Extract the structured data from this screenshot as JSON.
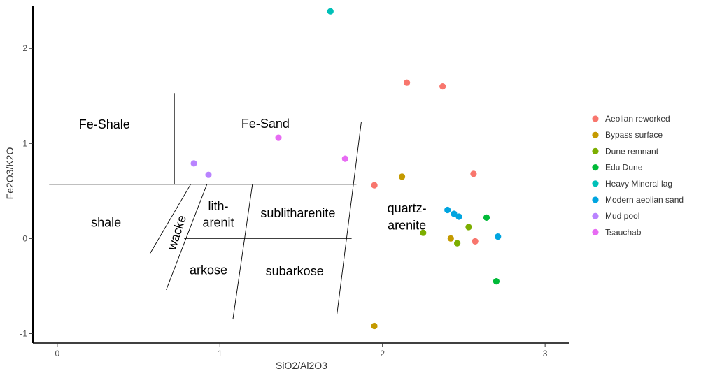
{
  "chart_data": {
    "type": "scatter",
    "xlabel": "SiO2/Al2O3",
    "ylabel": "Fe2O3/K2O",
    "xlim": [
      -0.15,
      3.15
    ],
    "ylim": [
      -1.1,
      2.45
    ],
    "x_ticks": [
      0,
      1,
      2,
      3
    ],
    "y_ticks": [
      -1,
      0,
      1,
      2
    ],
    "grid": false,
    "legend_position": "right",
    "series": [
      {
        "name": "Aeolian reworked",
        "color": "#F8766D",
        "points": [
          [
            2.15,
            1.64
          ],
          [
            2.37,
            1.6
          ],
          [
            2.56,
            0.68
          ],
          [
            1.95,
            0.56
          ],
          [
            2.57,
            -0.03
          ]
        ]
      },
      {
        "name": "Bypass surface",
        "color": "#C49A00",
        "points": [
          [
            2.12,
            0.65
          ],
          [
            2.42,
            0.0
          ],
          [
            1.95,
            -0.92
          ]
        ]
      },
      {
        "name": "Dune remnant",
        "color": "#7CAE00",
        "points": [
          [
            2.53,
            0.12
          ],
          [
            2.25,
            0.06
          ],
          [
            2.46,
            -0.05
          ]
        ]
      },
      {
        "name": "Edu Dune",
        "color": "#00BA38",
        "points": [
          [
            2.64,
            0.22
          ],
          [
            2.7,
            -0.45
          ]
        ]
      },
      {
        "name": "Heavy Mineral lag",
        "color": "#00C0B8",
        "points": [
          [
            1.68,
            2.39
          ]
        ]
      },
      {
        "name": "Modern aeolian sand",
        "color": "#00A5E0",
        "points": [
          [
            2.4,
            0.3
          ],
          [
            2.44,
            0.26
          ],
          [
            2.47,
            0.23
          ],
          [
            2.71,
            0.02
          ]
        ]
      },
      {
        "name": "Mud pool",
        "color": "#B983FF",
        "points": [
          [
            0.84,
            0.79
          ],
          [
            0.93,
            0.67
          ]
        ]
      },
      {
        "name": "Tsauchab",
        "color": "#E76BF3",
        "points": [
          [
            1.36,
            1.06
          ],
          [
            1.77,
            0.84
          ]
        ]
      }
    ],
    "boundaries": [
      [
        [
          -0.05,
          0.57
        ],
        [
          1.84,
          0.57
        ]
      ],
      [
        [
          0.72,
          1.53
        ],
        [
          0.72,
          0.57
        ]
      ],
      [
        [
          1.87,
          1.23
        ],
        [
          1.72,
          -0.8
        ]
      ],
      [
        [
          0.82,
          0.57
        ],
        [
          0.57,
          -0.16
        ]
      ],
      [
        [
          0.92,
          0.57
        ],
        [
          0.67,
          -0.54
        ]
      ],
      [
        [
          0.78,
          0.0
        ],
        [
          1.81,
          0.0
        ]
      ],
      [
        [
          1.2,
          0.57
        ],
        [
          1.08,
          -0.85
        ]
      ]
    ],
    "regions": [
      {
        "label": "Fe-Shale",
        "x": 0.29,
        "y": 1.19
      },
      {
        "label": "Fe-Sand",
        "x": 1.28,
        "y": 1.2
      },
      {
        "label": "shale",
        "x": 0.3,
        "y": 0.16
      },
      {
        "label": "lith-",
        "x": 0.99,
        "y": 0.33
      },
      {
        "label": "arenit",
        "x": 0.99,
        "y": 0.16
      },
      {
        "label": "sublitharenite",
        "x": 1.48,
        "y": 0.26
      },
      {
        "label": "quartz-",
        "x": 2.15,
        "y": 0.31
      },
      {
        "label": "arenite",
        "x": 2.15,
        "y": 0.13
      },
      {
        "label": "wacke",
        "x": 0.74,
        "y": 0.06,
        "rotate": -72
      },
      {
        "label": "arkose",
        "x": 0.93,
        "y": -0.34
      },
      {
        "label": "subarkose",
        "x": 1.46,
        "y": -0.35
      }
    ]
  }
}
